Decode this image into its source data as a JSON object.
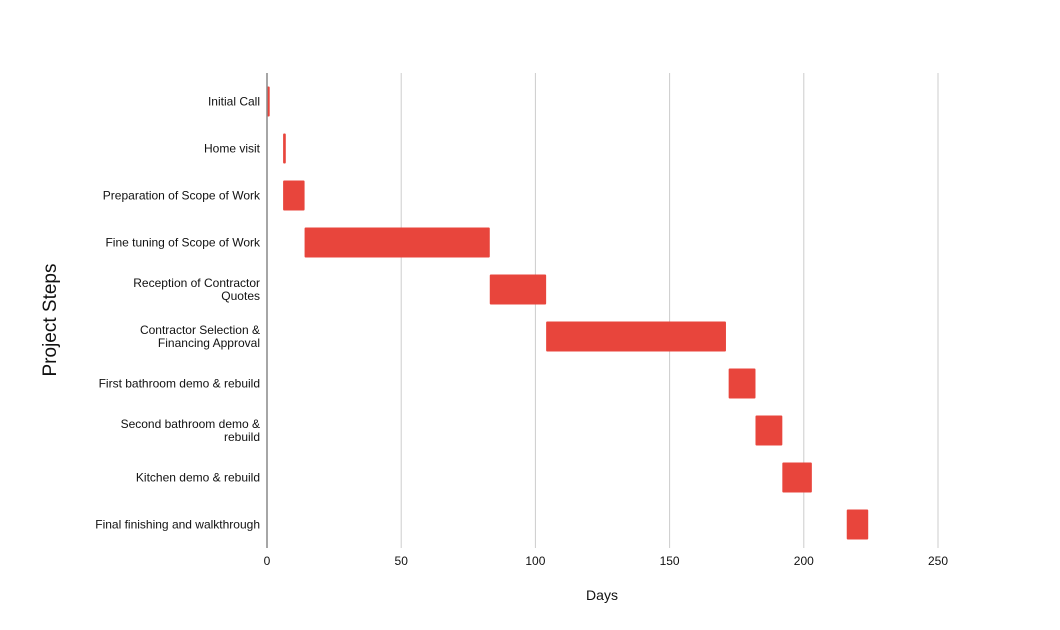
{
  "chart_data": {
    "type": "bar",
    "orientation": "horizontal",
    "subtype": "gantt",
    "categories": [
      "Initial Call",
      "Home visit",
      "Preparation of Scope of Work",
      "Fine tuning of Scope of Work",
      "Reception of Contractor Quotes",
      "Contractor Selection & Financing Approval",
      "First bathroom demo & rebuild",
      "Second bathroom demo & rebuild",
      "Kitchen demo & rebuild",
      "Final finishing and walkthrough"
    ],
    "category_label_lines": [
      [
        "Initial Call"
      ],
      [
        "Home visit"
      ],
      [
        "Preparation of Scope of Work"
      ],
      [
        "Fine tuning of Scope of Work"
      ],
      [
        "Reception of Contractor",
        "Quotes"
      ],
      [
        "Contractor Selection &",
        "Financing Approval"
      ],
      [
        "First bathroom demo & rebuild"
      ],
      [
        "Second bathroom demo &",
        "rebuild"
      ],
      [
        "Kitchen demo & rebuild"
      ],
      [
        "Final finishing and walkthrough"
      ]
    ],
    "series": [
      {
        "start": [
          0,
          6,
          6,
          14,
          83,
          104,
          172,
          182,
          192,
          216
        ],
        "end": [
          1,
          7,
          14,
          83,
          104,
          171,
          182,
          192,
          203,
          224
        ]
      }
    ],
    "xlabel": "Days",
    "ylabel": "Project Steps",
    "xlim": [
      0,
      250
    ],
    "xticks": [
      0,
      50,
      100,
      150,
      200,
      250
    ],
    "grid": "vertical",
    "legend": "none",
    "bar_color": "#e8453c",
    "grid_color": "#cccccc",
    "axis_color": "#888888"
  }
}
